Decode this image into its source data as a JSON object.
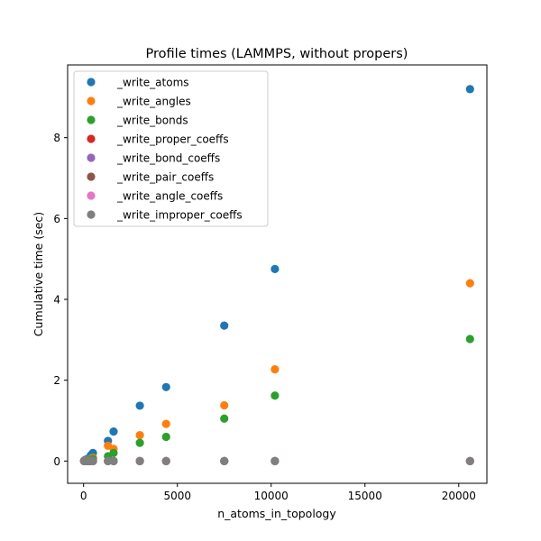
{
  "chart_data": {
    "type": "scatter",
    "title": "Profile times (LAMMPS, without propers)",
    "xlabel": "n_atoms_in_topology",
    "ylabel": "Cumulative time (sec)",
    "xlim": [
      -850,
      21500
    ],
    "ylim": [
      -0.55,
      9.8
    ],
    "xticks": [
      0,
      5000,
      10000,
      15000,
      20000
    ],
    "yticks": [
      0,
      2,
      4,
      6,
      8
    ],
    "grid": false,
    "legend_position": "upper left",
    "x": [
      30,
      60,
      100,
      150,
      200,
      250,
      300,
      400,
      500,
      1300,
      1600,
      3000,
      4400,
      7500,
      10200,
      20600
    ],
    "series": [
      {
        "name": "_write_atoms",
        "color": "#1f77b4",
        "values": [
          0.01,
          0.02,
          0.03,
          0.04,
          0.05,
          0.06,
          0.08,
          0.15,
          0.2,
          0.5,
          0.73,
          1.37,
          1.83,
          3.35,
          4.75,
          9.2
        ]
      },
      {
        "name": "_write_angles",
        "color": "#ff7f0e",
        "values": [
          0.0,
          0.01,
          0.01,
          0.02,
          0.02,
          0.03,
          0.04,
          0.06,
          0.08,
          0.38,
          0.3,
          0.64,
          0.92,
          1.38,
          2.27,
          4.4
        ]
      },
      {
        "name": "_write_bonds",
        "color": "#2ca02c",
        "values": [
          0.0,
          0.0,
          0.01,
          0.01,
          0.02,
          0.02,
          0.03,
          0.04,
          0.05,
          0.12,
          0.2,
          0.45,
          0.6,
          1.05,
          1.62,
          3.02
        ]
      },
      {
        "name": "_write_proper_coeffs",
        "color": "#d62728",
        "values": [
          0,
          0,
          0,
          0,
          0,
          0,
          0,
          0,
          0,
          0,
          0,
          0,
          0,
          0,
          0,
          0
        ]
      },
      {
        "name": "_write_bond_coeffs",
        "color": "#9467bd",
        "values": [
          0,
          0,
          0,
          0,
          0,
          0,
          0,
          0,
          0,
          0,
          0,
          0,
          0,
          0,
          0,
          0
        ]
      },
      {
        "name": "_write_pair_coeffs",
        "color": "#8c564b",
        "values": [
          0,
          0,
          0,
          0,
          0,
          0,
          0,
          0,
          0,
          0,
          0,
          0,
          0,
          0,
          0,
          0
        ]
      },
      {
        "name": "_write_angle_coeffs",
        "color": "#e377c2",
        "values": [
          0,
          0,
          0,
          0,
          0,
          0,
          0,
          0,
          0,
          0,
          0,
          0,
          0,
          0,
          0,
          0
        ]
      },
      {
        "name": "_write_improper_coeffs",
        "color": "#7f7f7f",
        "values": [
          0,
          0,
          0,
          0,
          0,
          0,
          0,
          0,
          0,
          0,
          0,
          0,
          0,
          0,
          0,
          0
        ]
      }
    ]
  }
}
